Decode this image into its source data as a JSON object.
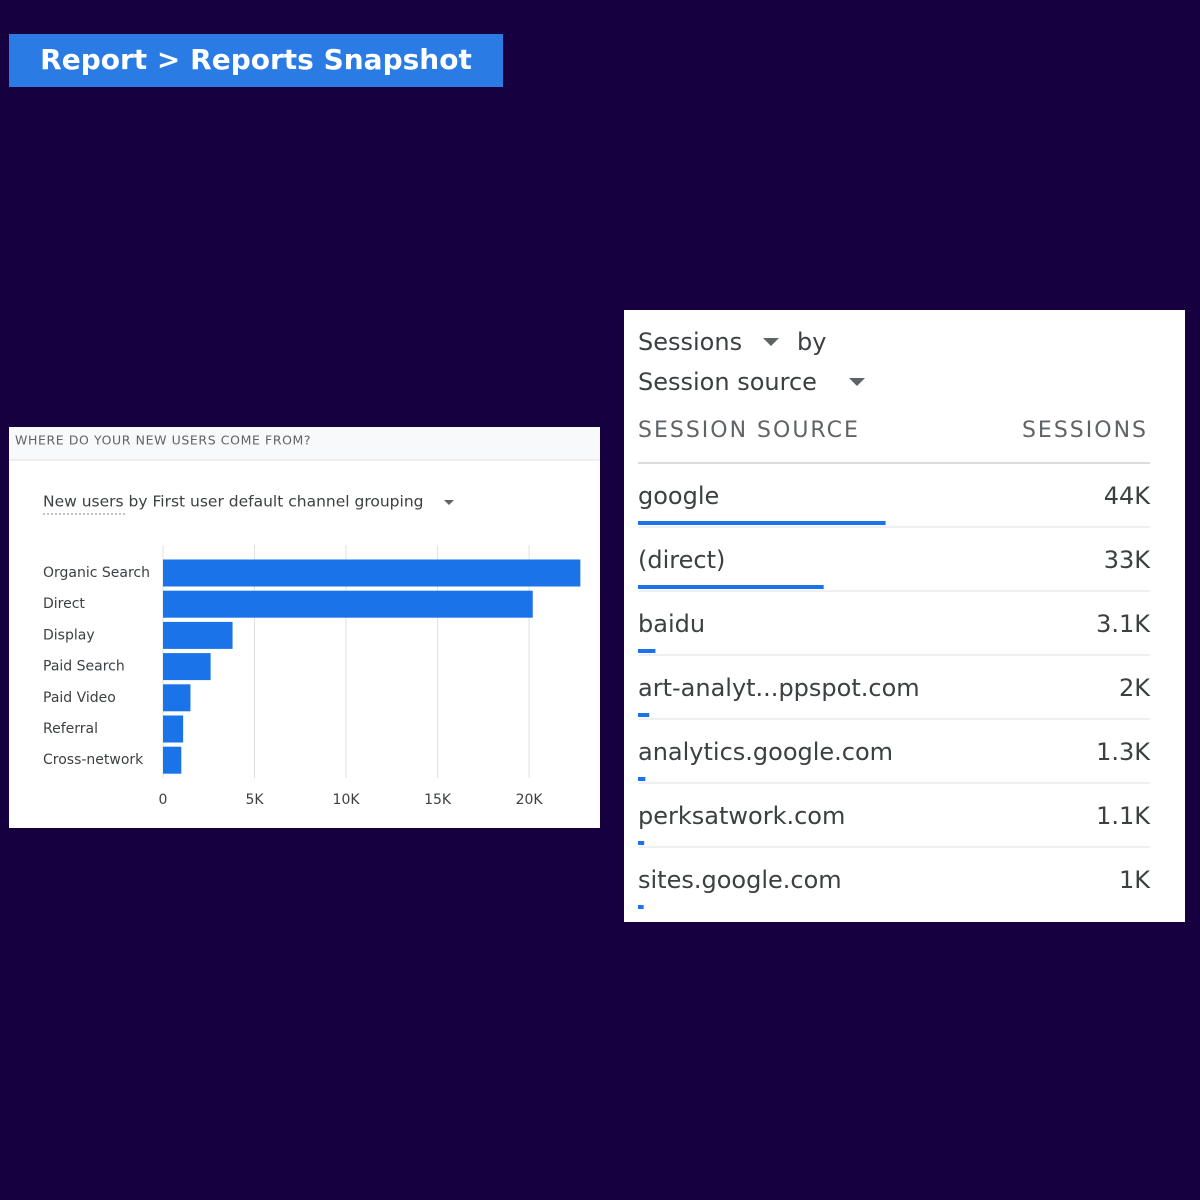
{
  "header": {
    "title": "Report > Reports Snapshot"
  },
  "chart_data": {
    "type": "bar",
    "orientation": "horizontal",
    "title": "WHERE DO YOUR NEW USERS COME FROM?",
    "subtitle": "New users by First user default channel grouping",
    "categories": [
      "Organic Search",
      "Direct",
      "Display",
      "Paid Search",
      "Paid Video",
      "Referral",
      "Cross-network"
    ],
    "values": [
      22800,
      20200,
      3800,
      2600,
      1500,
      1100,
      1000
    ],
    "color": "#1a73e8",
    "xlim": [
      0,
      23000
    ],
    "xticks": [
      0,
      {
        "value": 5000,
        "label": "5K"
      },
      {
        "value": 10000,
        "label": "10K"
      },
      {
        "value": 15000,
        "label": "15K"
      },
      {
        "value": 20000,
        "label": "20K"
      }
    ],
    "grid": true
  },
  "sessions_table": {
    "metric": "Sessions",
    "by": "by",
    "dimension": "Session source",
    "columns": [
      "SESSION SOURCE",
      "SESSIONS"
    ],
    "sources": [
      "google",
      "(direct)",
      "baidu",
      "art-analyt...ppspot.com",
      "analytics.google.com",
      "perksatwork.com",
      "sites.google.com"
    ],
    "values": [
      44000,
      33000,
      3100,
      2000,
      1300,
      1100,
      1000
    ],
    "value_labels": [
      "44K",
      "33K",
      "3.1K",
      "2K",
      "1.3K",
      "1.1K",
      "1K"
    ],
    "xlim": [
      0,
      91000
    ],
    "color": "#1a73e8"
  }
}
